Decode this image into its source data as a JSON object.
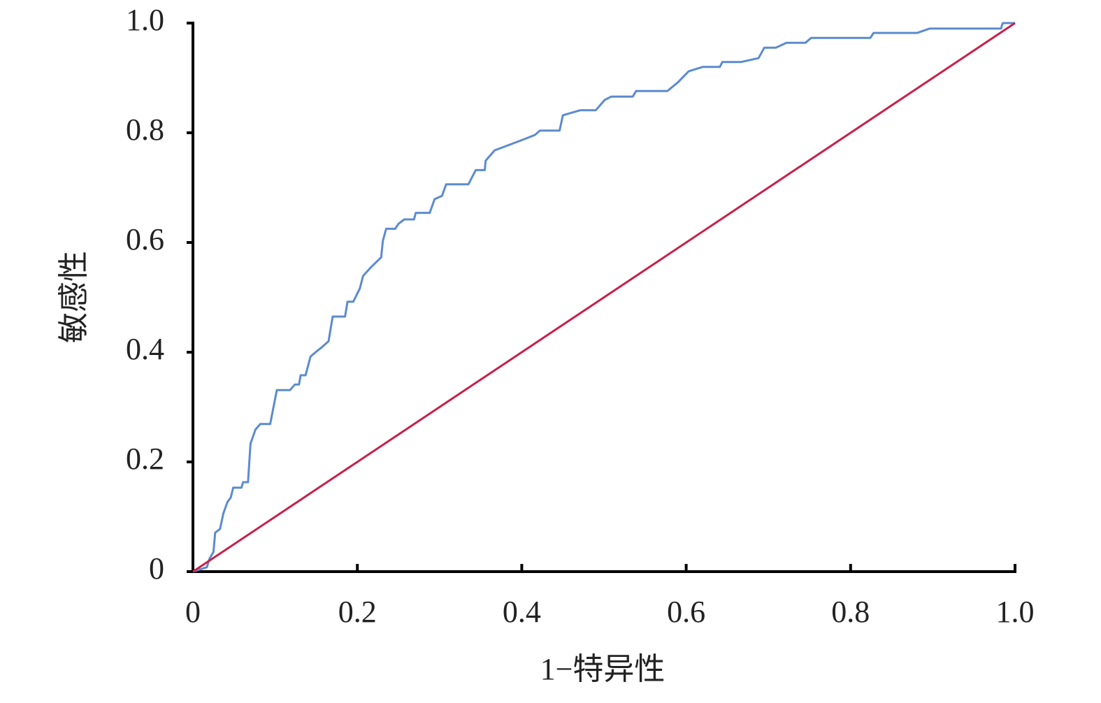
{
  "chart_data": {
    "type": "line",
    "x_label": "1−特异性",
    "y_label": "敏感性",
    "xlim": [
      0,
      1
    ],
    "ylim": [
      0,
      1
    ],
    "xticks": [
      0,
      0.2,
      0.4,
      0.6,
      0.8,
      {
        "value": 1,
        "label": "1.0"
      }
    ],
    "yticks": [
      0,
      0.2,
      0.4,
      0.6,
      0.8,
      {
        "value": 1,
        "label": "1.0"
      }
    ],
    "grid": false,
    "series": [
      {
        "color": "#5b8bd0",
        "x": [
          0,
          0.017,
          0.02,
          0.025,
          0.027,
          0.033,
          0.037,
          0.042,
          0.046,
          0.049,
          0.059,
          0.061,
          0.067,
          0.07,
          0.076,
          0.082,
          0.094,
          0.102,
          0.118,
          0.124,
          0.129,
          0.131,
          0.137,
          0.143,
          0.15,
          0.156,
          0.165,
          0.17,
          0.185,
          0.188,
          0.195,
          0.203,
          0.207,
          0.216,
          0.229,
          0.231,
          0.235,
          0.246,
          0.25,
          0.257,
          0.269,
          0.271,
          0.288,
          0.294,
          0.303,
          0.308,
          0.335,
          0.344,
          0.355,
          0.356,
          0.367,
          0.399,
          0.416,
          0.422,
          0.446,
          0.45,
          0.471,
          0.49,
          0.501,
          0.509,
          0.535,
          0.539,
          0.577,
          0.59,
          0.603,
          0.62,
          0.641,
          0.644,
          0.667,
          0.688,
          0.695,
          0.709,
          0.722,
          0.745,
          0.752,
          0.824,
          0.828,
          0.881,
          0.896,
          0.983,
          0.985,
          1
        ],
        "values": [
          0,
          0.008,
          0.023,
          0.036,
          0.071,
          0.078,
          0.106,
          0.127,
          0.135,
          0.153,
          0.153,
          0.163,
          0.163,
          0.233,
          0.259,
          0.269,
          0.269,
          0.331,
          0.331,
          0.341,
          0.341,
          0.358,
          0.358,
          0.392,
          0.401,
          0.408,
          0.42,
          0.465,
          0.465,
          0.492,
          0.492,
          0.516,
          0.539,
          0.554,
          0.573,
          0.603,
          0.625,
          0.625,
          0.634,
          0.642,
          0.642,
          0.654,
          0.654,
          0.679,
          0.685,
          0.706,
          0.706,
          0.732,
          0.732,
          0.749,
          0.768,
          0.786,
          0.796,
          0.804,
          0.804,
          0.832,
          0.841,
          0.841,
          0.86,
          0.866,
          0.866,
          0.876,
          0.876,
          0.892,
          0.912,
          0.92,
          0.92,
          0.929,
          0.929,
          0.936,
          0.955,
          0.955,
          0.964,
          0.964,
          0.973,
          0.973,
          0.982,
          0.982,
          0.99,
          0.99,
          1,
          1
        ]
      },
      {
        "color": "#c8204a",
        "x": [
          0,
          1
        ],
        "values": [
          0,
          1
        ]
      }
    ]
  }
}
